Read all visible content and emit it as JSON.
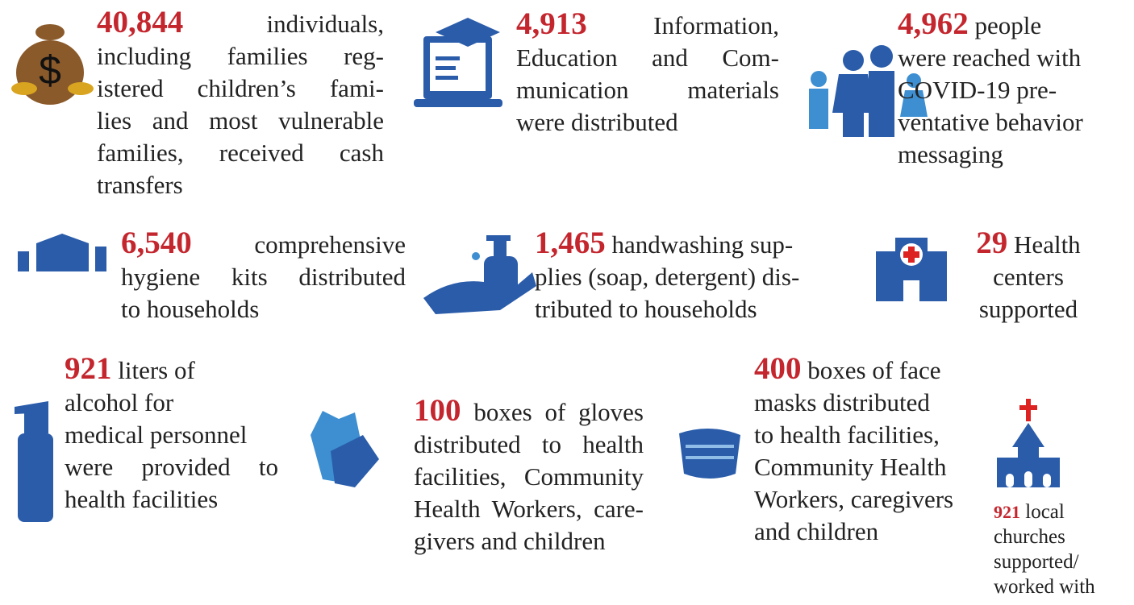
{
  "items": [
    {
      "number": "40,844",
      "lines": [
        "individuals,",
        "including families reg-",
        "istered children’s fami-",
        "lies and most vulnerable",
        "families, received cash",
        "transfers"
      ]
    },
    {
      "number": "4,913",
      "lines": [
        "Information,",
        "Education and Com-",
        "munication materials",
        "were distributed"
      ]
    },
    {
      "number": "4,962",
      "lines": [
        "people",
        "were reached with",
        "COVID-19 pre-",
        "ventative behavior",
        "messaging"
      ]
    },
    {
      "number": "6,540",
      "lines": [
        "comprehensive",
        "hygiene kits distributed",
        "to households"
      ]
    },
    {
      "number": "1,465",
      "lines": [
        "handwashing sup-",
        "plies (soap, detergent) dis-",
        "tributed to households"
      ]
    },
    {
      "number": "29",
      "lines": [
        "Health",
        "centers",
        "supported"
      ]
    },
    {
      "number": "921",
      "lines": [
        "liters of",
        "alcohol for",
        "medical personnel",
        "were provided to",
        "health facilities"
      ]
    },
    {
      "number": "100",
      "lines": [
        "boxes of gloves",
        "distributed to health",
        "facilities, Community",
        "Health Workers, care-",
        "givers and children"
      ]
    },
    {
      "number": "400",
      "lines": [
        "boxes of face",
        "masks distributed",
        "to health facilities,",
        "Community Health",
        "Workers, caregivers",
        "and children"
      ]
    },
    {
      "number": "921",
      "lines": [
        "local",
        "churches",
        "supported/",
        "worked with"
      ]
    }
  ]
}
